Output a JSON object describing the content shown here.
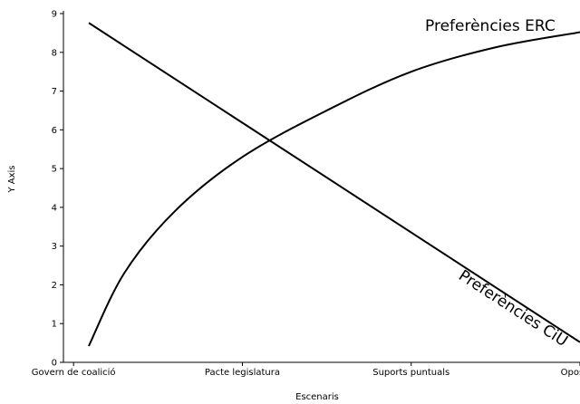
{
  "chart_data": {
    "type": "line",
    "xlabel": "Escenaris",
    "ylabel": "Y Axis",
    "categories": [
      "Govern de coalició",
      "Pacte legislatura",
      "Suports puntuals",
      "Oposició"
    ],
    "xlim": [
      -0.06,
      3.0
    ],
    "ylim": [
      0,
      9
    ],
    "yticks": [
      0,
      1,
      2,
      3,
      4,
      5,
      6,
      7,
      8,
      9
    ],
    "grid": false,
    "series": [
      {
        "name": "Preferències ERC",
        "x": [
          0.09,
          0.3,
          0.6,
          1.0,
          1.5,
          2.0,
          2.5,
          3.0
        ],
        "y": [
          0.42,
          2.3,
          3.9,
          5.3,
          6.5,
          7.5,
          8.13,
          8.52
        ]
      },
      {
        "name": "Preferències CiU",
        "x": [
          0.09,
          3.0
        ],
        "y": [
          8.76,
          0.52
        ]
      }
    ]
  }
}
